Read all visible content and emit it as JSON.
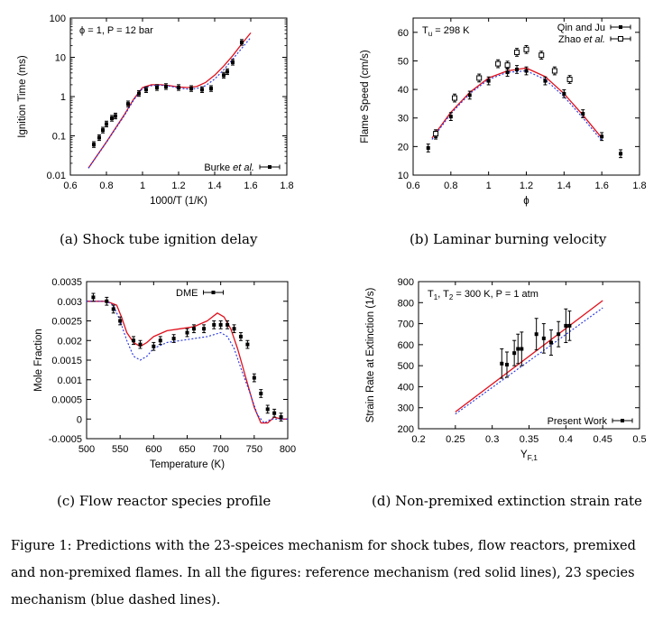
{
  "panels": [
    {
      "id": "a",
      "caption": "(a) Shock tube ignition delay",
      "annotation": "ϕ = 1, P = 12 bar",
      "chart_data": {
        "type": "line",
        "xlabel": "1000/T (1/K)",
        "ylabel": "Ignition Time (ms)",
        "xlim": [
          0.6,
          1.8
        ],
        "ylim": [
          0.01,
          100
        ],
        "yscale": "log",
        "xticks": [
          0.6,
          0.8,
          1,
          1.2,
          1.4,
          1.6,
          1.8
        ],
        "yticks": [
          0.01,
          0.1,
          1,
          10,
          100
        ],
        "legend_position": "bottom-right",
        "series": [
          {
            "name": "",
            "color": "#e0101c",
            "style": "solid",
            "x": [
              0.7,
              0.8,
              0.9,
              0.95,
              1.0,
              1.05,
              1.1,
              1.15,
              1.2,
              1.25,
              1.3,
              1.35,
              1.4,
              1.45,
              1.5,
              1.55,
              1.6
            ],
            "y": [
              0.015,
              0.07,
              0.35,
              0.85,
              1.7,
              2.0,
              2.0,
              1.9,
              1.75,
              1.7,
              1.8,
              2.3,
              3.5,
              6.0,
              11.0,
              22.0,
              42.0
            ]
          },
          {
            "name": "",
            "color": "#2030e0",
            "style": "dashed",
            "x": [
              0.7,
              0.8,
              0.9,
              0.95,
              1.0,
              1.05,
              1.1,
              1.15,
              1.2,
              1.25,
              1.3,
              1.35,
              1.4,
              1.45,
              1.5,
              1.55,
              1.6
            ],
            "y": [
              0.015,
              0.068,
              0.33,
              0.8,
              1.6,
              1.9,
              1.95,
              1.85,
              1.65,
              1.55,
              1.6,
              1.9,
              2.8,
              4.8,
              9.0,
              17.0,
              32.0
            ]
          },
          {
            "name": "Burke et al.",
            "type": "scatter",
            "errorbars": true,
            "x": [
              0.73,
              0.76,
              0.78,
              0.8,
              0.83,
              0.85,
              0.92,
              0.98,
              1.02,
              1.08,
              1.13,
              1.2,
              1.27,
              1.33,
              1.38,
              1.45,
              1.47,
              1.5,
              1.55
            ],
            "y": [
              0.06,
              0.09,
              0.14,
              0.2,
              0.28,
              0.32,
              0.65,
              1.2,
              1.5,
              1.7,
              1.8,
              1.7,
              1.6,
              1.5,
              1.6,
              3.5,
              4.3,
              7.5,
              24.0
            ]
          }
        ]
      }
    },
    {
      "id": "b",
      "caption": "(b) Laminar burning velocity",
      "annotation": "T",
      "annotation_sub": "u",
      "annotation_rest": " = 298 K",
      "chart_data": {
        "type": "line",
        "xlabel": "ϕ",
        "ylabel": "Flame Speed (cm/s)",
        "xlim": [
          0.6,
          1.8
        ],
        "ylim": [
          10,
          65
        ],
        "xticks": [
          0.6,
          0.8,
          1,
          1.2,
          1.4,
          1.6,
          1.8
        ],
        "yticks": [
          10,
          20,
          30,
          40,
          50,
          60
        ],
        "legend_position": "top-right",
        "series": [
          {
            "name": "",
            "color": "#e0101c",
            "style": "solid",
            "x": [
              0.7,
              0.8,
              0.9,
              1.0,
              1.1,
              1.2,
              1.3,
              1.4,
              1.5,
              1.6
            ],
            "y": [
              23.0,
              32.0,
              39.0,
              44.0,
              46.5,
              47.5,
              44.5,
              38.5,
              31.0,
              23.0
            ]
          },
          {
            "name": "",
            "color": "#2030e0",
            "style": "dashed",
            "x": [
              0.7,
              0.8,
              0.9,
              1.0,
              1.1,
              1.2,
              1.3,
              1.4,
              1.5,
              1.6
            ],
            "y": [
              22.5,
              31.5,
              38.5,
              43.5,
              46.0,
              46.5,
              43.5,
              37.5,
              30.0,
              22.0
            ]
          },
          {
            "name": "Qin and Ju",
            "type": "scatter",
            "marker": "filled",
            "errorbars": true,
            "x": [
              0.68,
              0.72,
              0.8,
              0.9,
              1.0,
              1.1,
              1.15,
              1.2,
              1.3,
              1.4,
              1.5,
              1.6,
              1.7
            ],
            "y": [
              19.5,
              24.0,
              30.5,
              38.0,
              43.0,
              46.0,
              47.0,
              46.5,
              43.0,
              38.5,
              31.5,
              23.5,
              17.5
            ]
          },
          {
            "name": "Zhao et al.",
            "type": "scatter",
            "marker": "open-square",
            "errorbars": true,
            "x": [
              0.72,
              0.82,
              0.95,
              1.05,
              1.1,
              1.15,
              1.2,
              1.28,
              1.35,
              1.43
            ],
            "y": [
              24.5,
              37.0,
              44.0,
              49.0,
              48.5,
              53.0,
              54.0,
              52.0,
              46.5,
              43.5
            ]
          }
        ]
      }
    },
    {
      "id": "c",
      "caption": "(c) Flow reactor species profile",
      "chart_data": {
        "type": "line",
        "xlabel": "Temperature (K)",
        "ylabel": "Mole Fraction",
        "xlim": [
          500,
          800
        ],
        "ylim": [
          -0.0005,
          0.0035
        ],
        "xticks": [
          500,
          550,
          600,
          650,
          700,
          750,
          800
        ],
        "yticks": [
          -0.0005,
          0,
          0.0005,
          0.001,
          0.0015,
          0.002,
          0.0025,
          0.003,
          0.0035
        ],
        "ytick_labels": [
          "-0.0005",
          "0",
          "0.0005",
          "0.001",
          "0.0015",
          "0.002",
          "0.0025",
          "0.003",
          "0.0035"
        ],
        "legend_position": "top-center",
        "series": [
          {
            "name": "",
            "color": "#e0101c",
            "style": "solid",
            "x": [
              500,
              530,
              545,
              552,
              560,
              570,
              580,
              590,
              600,
              620,
              640,
              660,
              680,
              695,
              705,
              715,
              725,
              740,
              750,
              760,
              770,
              780,
              790,
              800
            ],
            "y": [
              0.003,
              0.003,
              0.0029,
              0.0026,
              0.0022,
              0.00195,
              0.00185,
              0.00195,
              0.0021,
              0.00225,
              0.0023,
              0.00235,
              0.0025,
              0.0027,
              0.0026,
              0.0023,
              0.0018,
              0.0009,
              0.0003,
              -0.0001,
              -0.0001,
              5e-05,
              0.0,
              0.0
            ]
          },
          {
            "name": "",
            "color": "#2030e0",
            "style": "dashed",
            "x": [
              500,
              530,
              540,
              550,
              560,
              570,
              580,
              590,
              600,
              620,
              640,
              660,
              680,
              700,
              710,
              720,
              730,
              745,
              755,
              765,
              775,
              790,
              800
            ],
            "y": [
              0.003,
              0.003,
              0.0029,
              0.0025,
              0.002,
              0.0016,
              0.0015,
              0.0016,
              0.0018,
              0.00195,
              0.002,
              0.00205,
              0.0021,
              0.0022,
              0.0021,
              0.0018,
              0.0013,
              0.0006,
              0.0001,
              -0.0001,
              0.0,
              0.0,
              0.0
            ]
          },
          {
            "name": "DME",
            "type": "scatter",
            "errorbars": true,
            "x": [
              510,
              530,
              540,
              550,
              570,
              580,
              600,
              610,
              630,
              650,
              660,
              675,
              690,
              700,
              710,
              720,
              730,
              740,
              750,
              760,
              770,
              780,
              790
            ],
            "y": [
              0.0031,
              0.003,
              0.0028,
              0.0025,
              0.002,
              0.0019,
              0.00185,
              0.002,
              0.00205,
              0.0022,
              0.0023,
              0.0023,
              0.0024,
              0.0024,
              0.0024,
              0.0023,
              0.0021,
              0.0019,
              0.00105,
              0.00065,
              0.00025,
              0.00015,
              5e-05
            ]
          }
        ]
      }
    },
    {
      "id": "d",
      "caption": "(d) Non-premixed extinction strain rate",
      "annotation": "T",
      "annotation_sub1": "1",
      "annotation_mid": ", T",
      "annotation_sub2": "2",
      "annotation_rest": " = 300 K, P = 1 atm",
      "chart_data": {
        "type": "line",
        "xlabel": "Y",
        "xlabel_sub": "F,1",
        "ylabel": "Strain Rate at Extinction (1/s)",
        "xlim": [
          0.2,
          0.5
        ],
        "ylim": [
          200,
          900
        ],
        "xticks": [
          0.2,
          0.25,
          0.3,
          0.35,
          0.4,
          0.45,
          0.5
        ],
        "yticks": [
          200,
          300,
          400,
          500,
          600,
          700,
          800,
          900
        ],
        "legend_position": "bottom-right",
        "series": [
          {
            "name": "",
            "color": "#e0101c",
            "style": "solid",
            "x": [
              0.25,
              0.45
            ],
            "y": [
              280,
              810
            ]
          },
          {
            "name": "",
            "color": "#2030e0",
            "style": "dashed",
            "x": [
              0.25,
              0.45
            ],
            "y": [
              270,
              775
            ]
          },
          {
            "name": "Present Work",
            "type": "scatter",
            "errorbars": true,
            "x": [
              0.313,
              0.32,
              0.33,
              0.335,
              0.34,
              0.36,
              0.37,
              0.38,
              0.39,
              0.4,
              0.405
            ],
            "y": [
              510,
              505,
              560,
              580,
              580,
              650,
              630,
              610,
              650,
              690,
              690
            ],
            "err": [
              70,
              60,
              60,
              70,
              80,
              75,
              70,
              60,
              60,
              80,
              70
            ]
          }
        ]
      }
    }
  ],
  "figure_caption_lines": [
    "Figure 1: Predictions with the 23-speices mechanism for shock tubes, flow reactors, premixed",
    "and non-premixed flames. In all the figures: reference mechanism (red solid lines), 23 species",
    "mechanism (blue dashed lines)."
  ]
}
